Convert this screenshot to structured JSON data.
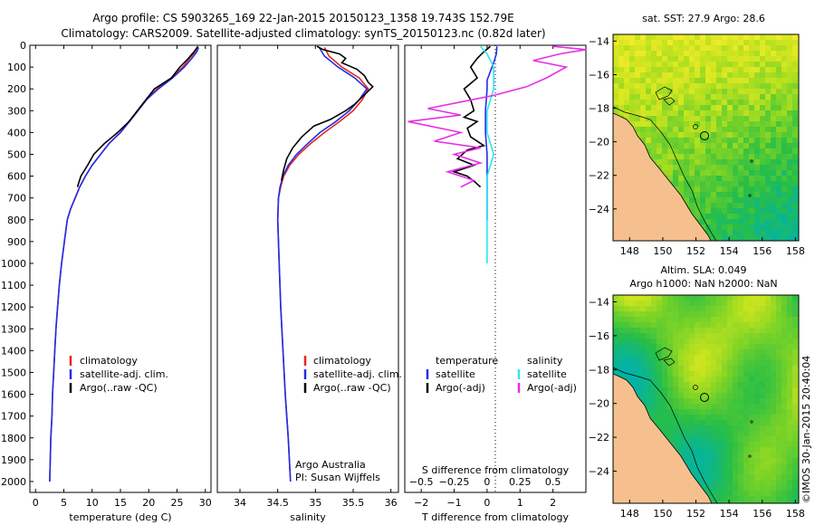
{
  "title": {
    "line1": "Argo profile: CS 5903265_169 22-Jan-2015 20150123_1358 19.743S 152.79E",
    "line2": "Climatology: CARS2009. Satellite-adjusted climatology: synTS_20150123.nc (0.82d later)"
  },
  "colors": {
    "climatology": "#e8261f",
    "satellite": "#1f2fe8",
    "argo": "#000000",
    "sal_satellite": "#2ee6f0",
    "sal_argo": "#e62ee6",
    "land": "#f6c08e"
  },
  "credit": "©IMOS 30-Jan-2015 20:40:04",
  "chart_data": [
    {
      "type": "line",
      "id": "temperature-profile",
      "xlabel": "temperature (deg C)",
      "xlim": [
        -1,
        31
      ],
      "xticks": [
        0,
        5,
        10,
        15,
        20,
        25,
        30
      ],
      "ylim": [
        0,
        2050
      ],
      "yticks": [
        0,
        100,
        200,
        300,
        400,
        500,
        600,
        700,
        800,
        900,
        1000,
        1100,
        1200,
        1300,
        1400,
        1500,
        1600,
        1700,
        1800,
        1900,
        2000
      ],
      "legend": [
        "climatology",
        "satellite-adj. clim.",
        "Argo(..raw -QC)"
      ],
      "series": [
        {
          "name": "climatology",
          "color": "#e8261f",
          "points": [
            [
              28.5,
              10
            ],
            [
              28.2,
              30
            ],
            [
              27.2,
              60
            ],
            [
              26.0,
              100
            ],
            [
              24.0,
              150
            ],
            [
              21.5,
              200
            ],
            [
              19.5,
              250
            ],
            [
              18.0,
              300
            ],
            [
              16.5,
              350
            ],
            [
              15.0,
              400
            ],
            [
              13.0,
              450
            ],
            [
              11.5,
              500
            ],
            [
              10.0,
              550
            ],
            [
              8.8,
              600
            ],
            [
              7.8,
              650
            ],
            [
              7.0,
              700
            ],
            [
              6.2,
              750
            ],
            [
              5.6,
              800
            ],
            [
              5.1,
              900
            ],
            [
              4.6,
              1000
            ],
            [
              4.2,
              1100
            ],
            [
              3.9,
              1200
            ],
            [
              3.6,
              1300
            ],
            [
              3.4,
              1400
            ],
            [
              3.2,
              1500
            ],
            [
              3.0,
              1600
            ],
            [
              2.9,
              1700
            ],
            [
              2.7,
              1800
            ],
            [
              2.6,
              1900
            ],
            [
              2.5,
              2000
            ]
          ]
        },
        {
          "name": "satellite-adj. clim.",
          "color": "#1f2fe8",
          "points": [
            [
              28.8,
              10
            ],
            [
              28.5,
              30
            ],
            [
              27.6,
              60
            ],
            [
              26.3,
              100
            ],
            [
              24.2,
              150
            ],
            [
              21.7,
              200
            ],
            [
              19.6,
              250
            ],
            [
              18.1,
              300
            ],
            [
              16.6,
              350
            ],
            [
              15.0,
              400
            ],
            [
              13.0,
              450
            ],
            [
              11.5,
              500
            ],
            [
              10.0,
              550
            ],
            [
              8.8,
              600
            ],
            [
              7.8,
              650
            ],
            [
              7.0,
              700
            ],
            [
              6.2,
              750
            ],
            [
              5.6,
              800
            ],
            [
              5.1,
              900
            ],
            [
              4.6,
              1000
            ],
            [
              4.2,
              1100
            ],
            [
              3.9,
              1200
            ],
            [
              3.6,
              1300
            ],
            [
              3.4,
              1400
            ],
            [
              3.2,
              1500
            ],
            [
              3.0,
              1600
            ],
            [
              2.9,
              1700
            ],
            [
              2.7,
              1800
            ],
            [
              2.6,
              1900
            ],
            [
              2.5,
              2000
            ]
          ]
        },
        {
          "name": "Argo(..raw -QC)",
          "color": "#000000",
          "points": [
            [
              28.7,
              5
            ],
            [
              28.0,
              30
            ],
            [
              27.0,
              60
            ],
            [
              25.5,
              100
            ],
            [
              24.0,
              150
            ],
            [
              21.0,
              200
            ],
            [
              19.5,
              250
            ],
            [
              18.0,
              300
            ],
            [
              16.5,
              350
            ],
            [
              14.5,
              400
            ],
            [
              12.2,
              450
            ],
            [
              10.3,
              500
            ],
            [
              9.2,
              550
            ],
            [
              8.0,
              600
            ],
            [
              7.4,
              650
            ]
          ]
        }
      ]
    },
    {
      "type": "line",
      "id": "salinity-profile",
      "xlabel": "salinity",
      "xlim": [
        33.7,
        36.1
      ],
      "xticks": [
        34,
        34.5,
        35,
        35.5,
        36
      ],
      "ylim": [
        0,
        2050
      ],
      "legend": [
        "climatology",
        "satellite-adj. clim.",
        "Argo(..raw -QC)"
      ],
      "annotation": [
        "Argo Australia",
        "PI: Susan Wijffels"
      ],
      "series": [
        {
          "name": "climatology",
          "color": "#e8261f",
          "points": [
            [
              35.12,
              10
            ],
            [
              35.18,
              50
            ],
            [
              35.35,
              100
            ],
            [
              35.58,
              150
            ],
            [
              35.7,
              200
            ],
            [
              35.62,
              250
            ],
            [
              35.5,
              300
            ],
            [
              35.32,
              350
            ],
            [
              35.12,
              400
            ],
            [
              34.94,
              450
            ],
            [
              34.78,
              500
            ],
            [
              34.66,
              550
            ],
            [
              34.58,
              600
            ],
            [
              34.54,
              650
            ],
            [
              34.51,
              700
            ],
            [
              34.5,
              800
            ],
            [
              34.51,
              900
            ],
            [
              34.52,
              1000
            ],
            [
              34.54,
              1200
            ],
            [
              34.57,
              1400
            ],
            [
              34.6,
              1600
            ],
            [
              34.64,
              1800
            ],
            [
              34.67,
              2000
            ]
          ]
        },
        {
          "name": "satellite-adj. clim.",
          "color": "#1f2fe8",
          "points": [
            [
              35.05,
              10
            ],
            [
              35.12,
              50
            ],
            [
              35.3,
              100
            ],
            [
              35.52,
              150
            ],
            [
              35.68,
              200
            ],
            [
              35.58,
              250
            ],
            [
              35.45,
              300
            ],
            [
              35.27,
              350
            ],
            [
              35.06,
              400
            ],
            [
              34.9,
              450
            ],
            [
              34.75,
              500
            ],
            [
              34.64,
              550
            ],
            [
              34.57,
              600
            ],
            [
              34.53,
              650
            ],
            [
              34.51,
              700
            ],
            [
              34.5,
              800
            ],
            [
              34.51,
              900
            ],
            [
              34.52,
              1000
            ],
            [
              34.54,
              1200
            ],
            [
              34.57,
              1400
            ],
            [
              34.6,
              1600
            ],
            [
              34.64,
              1800
            ],
            [
              34.67,
              2000
            ]
          ]
        },
        {
          "name": "Argo(..raw -QC)",
          "color": "#000000",
          "points": [
            [
              35.02,
              5
            ],
            [
              35.1,
              20
            ],
            [
              35.32,
              40
            ],
            [
              35.4,
              60
            ],
            [
              35.35,
              80
            ],
            [
              35.55,
              110
            ],
            [
              35.65,
              140
            ],
            [
              35.7,
              170
            ],
            [
              35.76,
              190
            ],
            [
              35.64,
              230
            ],
            [
              35.52,
              270
            ],
            [
              35.4,
              300
            ],
            [
              35.2,
              340
            ],
            [
              34.98,
              370
            ],
            [
              34.82,
              420
            ],
            [
              34.7,
              470
            ],
            [
              34.62,
              520
            ],
            [
              34.58,
              570
            ],
            [
              34.55,
              620
            ]
          ]
        }
      ]
    },
    {
      "type": "line",
      "id": "difference-profile",
      "xlabel_bottom": "T difference from climatology",
      "xlabel_top": "S difference from climatology",
      "xlim": [
        -2.5,
        3
      ],
      "xticks": [
        -2,
        -1,
        0,
        1,
        2
      ],
      "xticks_top": [
        -0.5,
        -0.25,
        0,
        0.25,
        0.5
      ],
      "xticks_top_labels": [
        "−0.5",
        "−0.25",
        "0",
        "0.25",
        "0.5"
      ],
      "ylim": [
        0,
        2050
      ],
      "legend_left": {
        "title": "temperature",
        "items": [
          "satellite",
          "Argo(-adj)"
        ]
      },
      "legend_right": {
        "title": "salinity",
        "items": [
          "satellite",
          "Argo(-adj)"
        ]
      },
      "series": [
        {
          "name": "T satellite",
          "color": "#1f2fe8",
          "points": [
            [
              0.3,
              5
            ],
            [
              0.28,
              40
            ],
            [
              0.2,
              80
            ],
            [
              0.1,
              120
            ],
            [
              0.0,
              160
            ],
            [
              0.0,
              200
            ],
            [
              -0.05,
              300
            ],
            [
              -0.05,
              400
            ],
            [
              0.0,
              500
            ],
            [
              0.0,
              600
            ],
            [
              0.0,
              700
            ],
            [
              0.0,
              800
            ]
          ]
        },
        {
          "name": "T Argo(-adj)",
          "color": "#000000",
          "points": [
            [
              0.1,
              5
            ],
            [
              -0.1,
              30
            ],
            [
              -0.3,
              60
            ],
            [
              -0.5,
              100
            ],
            [
              -0.3,
              150
            ],
            [
              -0.7,
              200
            ],
            [
              -0.5,
              250
            ],
            [
              -0.4,
              300
            ],
            [
              -0.7,
              330
            ],
            [
              -0.3,
              350
            ],
            [
              -0.6,
              380
            ],
            [
              -0.5,
              420
            ],
            [
              -0.1,
              460
            ],
            [
              -0.6,
              480
            ],
            [
              -0.9,
              520
            ],
            [
              -0.4,
              550
            ],
            [
              -1.0,
              580
            ],
            [
              -0.6,
              600
            ],
            [
              -0.35,
              630
            ],
            [
              -0.2,
              650
            ]
          ]
        },
        {
          "name": "S satellite",
          "color": "#2ee6f0",
          "points": [
            [
              -0.05,
              5
            ],
            [
              0.0,
              40
            ],
            [
              0.05,
              100
            ],
            [
              0.05,
              200
            ],
            [
              0.0,
              300
            ],
            [
              0.0,
              400
            ],
            [
              0.05,
              500
            ],
            [
              0.0,
              600
            ],
            [
              0.0,
              700
            ],
            [
              0.0,
              800
            ],
            [
              0.0,
              900
            ],
            [
              0.0,
              1000
            ]
          ]
        },
        {
          "name": "S Argo(-adj)",
          "color": "#e62ee6",
          "points": [
            [
              0.5,
              5
            ],
            [
              0.75,
              20
            ],
            [
              0.55,
              40
            ],
            [
              0.35,
              70
            ],
            [
              0.6,
              100
            ],
            [
              0.45,
              150
            ],
            [
              0.3,
              190
            ],
            [
              0.05,
              230
            ],
            [
              -0.2,
              260
            ],
            [
              -0.45,
              290
            ],
            [
              -0.2,
              320
            ],
            [
              -0.6,
              350
            ],
            [
              -0.2,
              400
            ],
            [
              -0.4,
              440
            ],
            [
              -0.05,
              470
            ],
            [
              -0.25,
              500
            ],
            [
              -0.05,
              540
            ],
            [
              -0.3,
              580
            ],
            [
              -0.1,
              620
            ],
            [
              -0.2,
              650
            ]
          ]
        }
      ]
    },
    {
      "type": "heatmap",
      "id": "sst-map",
      "title": "sat. SST: 27.9 Argo: 28.6",
      "xlim": [
        147,
        158.2
      ],
      "ylim": [
        -25.9,
        -13.6
      ],
      "xticks": [
        148,
        150,
        152,
        154,
        156,
        158
      ],
      "yticks": [
        -14,
        -16,
        -18,
        -20,
        -22,
        -24
      ],
      "argo_position": {
        "lon": 152.79,
        "lat": -19.743
      }
    },
    {
      "type": "heatmap",
      "id": "sla-map",
      "title_line1": "Altim. SLA: 0.049",
      "title_line2": "Argo h1000: NaN h2000: NaN",
      "xlim": [
        147,
        158.2
      ],
      "ylim": [
        -25.9,
        -13.6
      ],
      "xticks": [
        148,
        150,
        152,
        154,
        156,
        158
      ],
      "yticks": [
        -14,
        -16,
        -18,
        -20,
        -22,
        -24
      ],
      "argo_position": {
        "lon": 152.79,
        "lat": -19.743
      }
    }
  ]
}
